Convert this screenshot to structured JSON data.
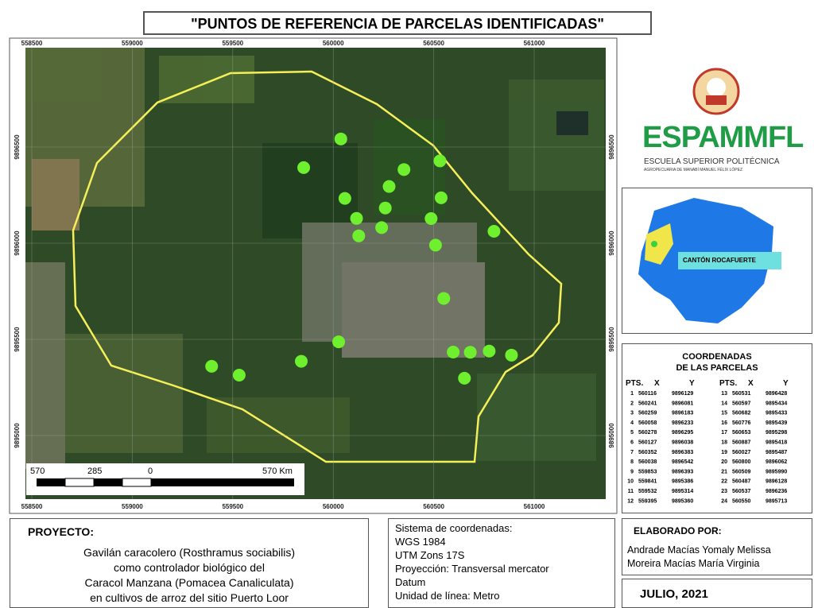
{
  "title": "\"PUNTOS DE REFERENCIA DE PARCELAS IDENTIFICADAS\"",
  "map": {
    "xticks": [
      558500,
      559000,
      559500,
      560000,
      560500,
      561000
    ],
    "yticks": [
      9896500,
      9896000,
      9895500,
      9895000
    ],
    "scale_labels": [
      "570",
      "285",
      "0",
      "570 Km"
    ]
  },
  "logo": {
    "name": "ESPAMMFL",
    "line1": "ESCUELA SUPERIOR POLITÉCNICA",
    "line2": "AGROPECUARIA DE MANABÍ MANUEL FÉLIX LÓPEZ"
  },
  "inset": {
    "label": "CANTÓN ROCAFUERTE"
  },
  "coordinates": {
    "title1": "COORDENADAS",
    "title2": "DE LAS PARCELAS",
    "headers": [
      "PTS.",
      "X",
      "Y"
    ],
    "points": [
      {
        "pt": 1,
        "x": 560116,
        "y": 9896129
      },
      {
        "pt": 2,
        "x": 560241,
        "y": 9896081
      },
      {
        "pt": 3,
        "x": 560259,
        "y": 9896183
      },
      {
        "pt": 4,
        "x": 560058,
        "y": 9896233
      },
      {
        "pt": 5,
        "x": 560278,
        "y": 9896295
      },
      {
        "pt": 6,
        "x": 560127,
        "y": 9896038
      },
      {
        "pt": 7,
        "x": 560352,
        "y": 9896383
      },
      {
        "pt": 8,
        "x": 560038,
        "y": 9896542
      },
      {
        "pt": 9,
        "x": 559853,
        "y": 9896393
      },
      {
        "pt": 10,
        "x": 559841,
        "y": 9895386
      },
      {
        "pt": 11,
        "x": 559532,
        "y": 9895314
      },
      {
        "pt": 12,
        "x": 559395,
        "y": 9895360
      },
      {
        "pt": 13,
        "x": 560531,
        "y": 9896428
      },
      {
        "pt": 14,
        "x": 560597,
        "y": 9895434
      },
      {
        "pt": 15,
        "x": 560682,
        "y": 9895433
      },
      {
        "pt": 16,
        "x": 560776,
        "y": 9895439
      },
      {
        "pt": 17,
        "x": 560653,
        "y": 9895298
      },
      {
        "pt": 18,
        "x": 560887,
        "y": 9895418
      },
      {
        "pt": 19,
        "x": 560027,
        "y": 9895487
      },
      {
        "pt": 20,
        "x": 560800,
        "y": 9896062
      },
      {
        "pt": 21,
        "x": 560509,
        "y": 9895990
      },
      {
        "pt": 22,
        "x": 560487,
        "y": 9896128
      },
      {
        "pt": 23,
        "x": 560537,
        "y": 9896236
      },
      {
        "pt": 24,
        "x": 560550,
        "y": 9895713
      }
    ]
  },
  "project": {
    "heading": "PROYECTO:",
    "lines": [
      "Gavilán caracolero (Rosthramus sociabilis)",
      "como controlador biológico del",
      "Caracol Manzana (Pomacea Canaliculata)",
      "en cultivos de arroz del sitio Puerto Loor"
    ]
  },
  "system": {
    "lines": [
      "Sistema de coordenadas:",
      "WGS 1984",
      "UTM Zons 17S",
      "Proyección: Transversal mercator",
      "Datum",
      "Unidad de línea: Metro"
    ]
  },
  "authors": {
    "heading": "ELABORADO POR:",
    "lines": [
      "Andrade Macías Yomaly Melissa",
      "Moreira Macías María Virginia"
    ]
  },
  "date": "JULIO, 2021"
}
